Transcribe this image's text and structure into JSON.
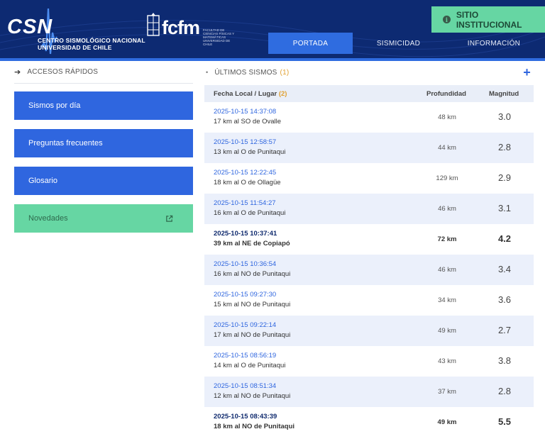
{
  "header": {
    "logo_csn": "CSN",
    "logo_sub1": "CENTRO SISMOLÓGICO NACIONAL",
    "logo_sub2": "UNIVERSIDAD DE CHILE",
    "logo_fcfm": "fcfm",
    "logo_fcfm_small": "FACULTAD DE CIENCIAS FÍSICAS Y MATEMÁTICAS UNIVERSIDAD DE CHILE",
    "institutional_button": "SITIO INSTITUCIONAL",
    "info_icon": "i",
    "nav": [
      {
        "label": "PORTADA",
        "active": true
      },
      {
        "label": "SISMICIDAD",
        "active": false
      },
      {
        "label": "INFORMACIÓN",
        "active": false
      }
    ],
    "colors": {
      "header_bg": "#0d2a72",
      "accent": "#2f6ce0",
      "green": "#66d6a3"
    }
  },
  "sidebar": {
    "title": "ACCESOS RÁPIDOS",
    "arrow_icon": "➔",
    "buttons": [
      {
        "label": "Sismos por día"
      },
      {
        "label": "Preguntas frecuentes"
      },
      {
        "label": "Glosario"
      },
      {
        "label": "Novedades"
      }
    ]
  },
  "main": {
    "bullet": "•",
    "title": "ÚLTIMOS SISMOS",
    "title_count": "(1)",
    "plus_icon": "+",
    "columns": {
      "place": "Fecha Local / Lugar",
      "place_count": "(2)",
      "depth": "Profundidad",
      "magnitude": "Magnitud"
    },
    "rows": [
      {
        "date": "2025-10-15 14:37:08",
        "place": "17 km al SO de Ovalle",
        "depth": "48 km",
        "magnitude": "3.0"
      },
      {
        "date": "2025-10-15 12:58:57",
        "place": "13 km al O de Punitaqui",
        "depth": "44 km",
        "magnitude": "2.8"
      },
      {
        "date": "2025-10-15 12:22:45",
        "place": "18 km al O de Ollagüe",
        "depth": "129 km",
        "magnitude": "2.9"
      },
      {
        "date": "2025-10-15 11:54:27",
        "place": "16 km al O de Punitaqui",
        "depth": "46 km",
        "magnitude": "3.1"
      },
      {
        "date": "2025-10-15 10:37:41",
        "place": "39 km al NE de Copiapó",
        "depth": "72 km",
        "magnitude": "4.2"
      },
      {
        "date": "2025-10-15 10:36:54",
        "place": "16 km al NO de Punitaqui",
        "depth": "46 km",
        "magnitude": "3.4"
      },
      {
        "date": "2025-10-15 09:27:30",
        "place": "15 km al NO de Punitaqui",
        "depth": "34 km",
        "magnitude": "3.6"
      },
      {
        "date": "2025-10-15 09:22:14",
        "place": "17 km al NO de Punitaqui",
        "depth": "49 km",
        "magnitude": "2.7"
      },
      {
        "date": "2025-10-15 08:56:19",
        "place": "14 km al O de Punitaqui",
        "depth": "43 km",
        "magnitude": "3.8"
      },
      {
        "date": "2025-10-15 08:51:34",
        "place": "12 km al NO de Punitaqui",
        "depth": "37 km",
        "magnitude": "2.8"
      },
      {
        "date": "2025-10-15 08:43:39",
        "place": "18 km al NO de Punitaqui",
        "depth": "49 km",
        "magnitude": "5.5"
      }
    ]
  }
}
